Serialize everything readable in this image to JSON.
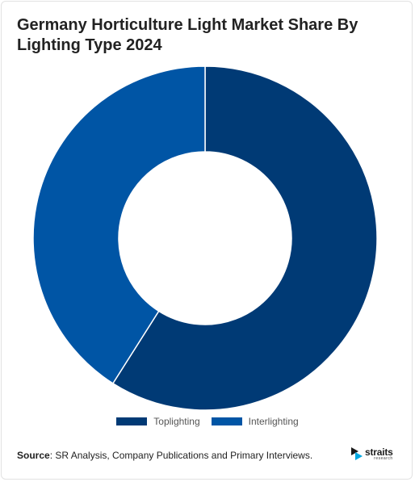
{
  "title": "Germany Horticulture Light Market Share By Lighting Type 2024",
  "chart_data": {
    "type": "pie",
    "donut": true,
    "title": "Germany Horticulture Light Market Share By Lighting Type 2024",
    "categories": [
      "Toplighting",
      "Interlighting"
    ],
    "values": [
      59,
      41
    ],
    "unit": "%",
    "colors": [
      "#003a75",
      "#0055a5"
    ],
    "legend_position": "bottom"
  },
  "legend": [
    {
      "label": "Toplighting",
      "color": "#003a75"
    },
    {
      "label": "Interlighting",
      "color": "#0055a5"
    }
  ],
  "source": {
    "label": "Source",
    "text": ": SR Analysis, Company Publications and Primary Interviews."
  },
  "logo": {
    "name": "straits",
    "sub": "research",
    "icon": "straits-logo-icon",
    "accent_colors": [
      "#1a1a1a",
      "#00a7e1"
    ]
  }
}
